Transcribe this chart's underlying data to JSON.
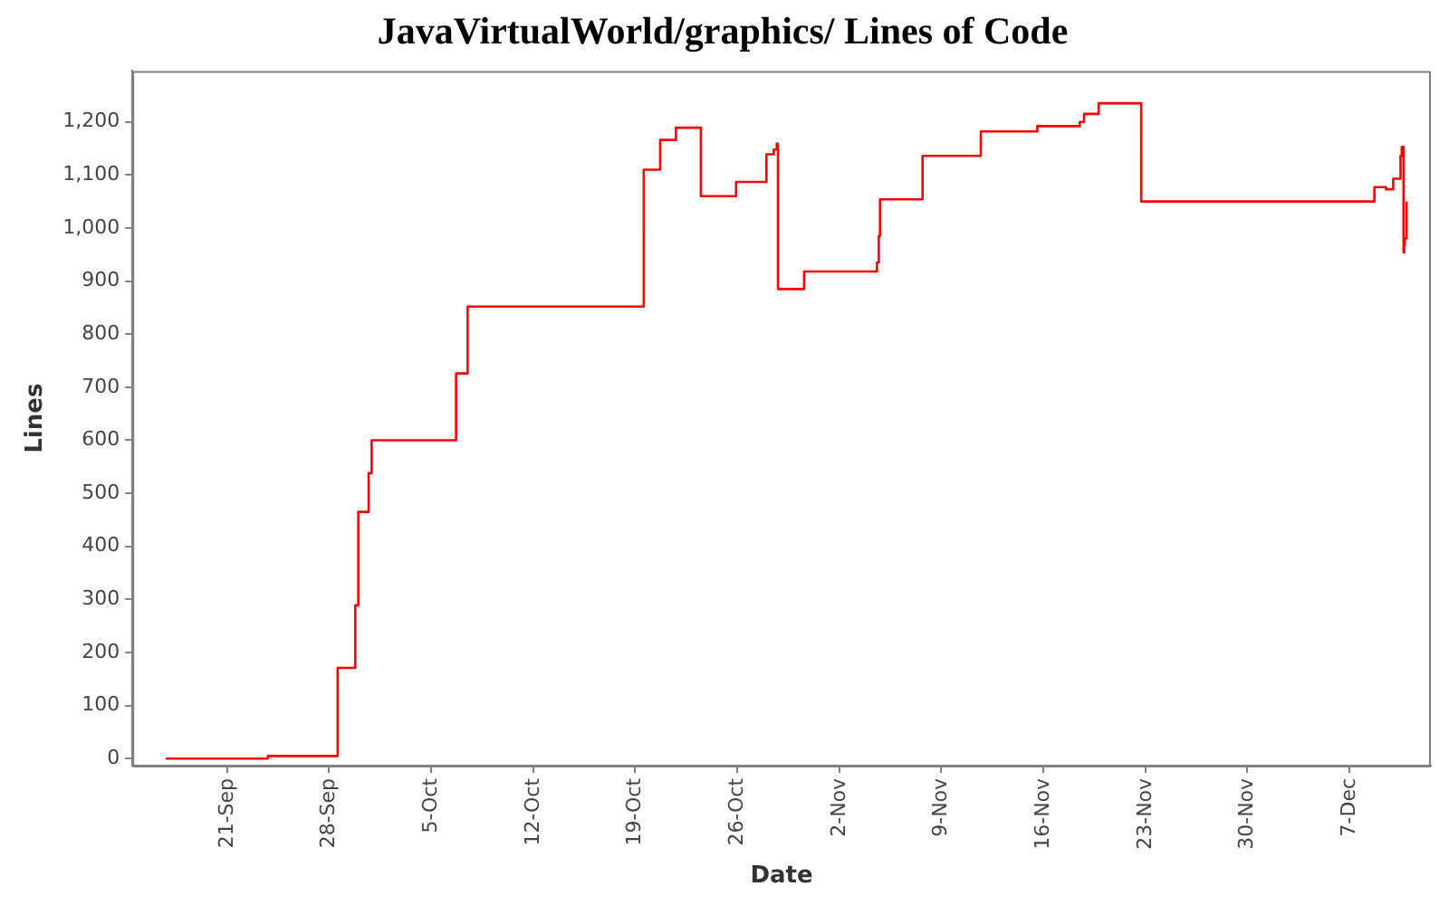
{
  "chart_data": {
    "type": "step",
    "title": "JavaVirtualWorld/graphics/ Lines of Code",
    "xlabel": "Date",
    "ylabel": "Lines",
    "x": [
      "--09-16T19:00",
      "--09-23T19:00",
      "--09-28T14:00",
      "--09-29T19:00",
      "--09-30T00:00",
      "--09-30T17:00",
      "--09-30T22:00",
      "--10-06T17:00",
      "--10-07T12:00",
      "--10-19T14:00",
      "--10-20T17:00",
      "--10-21T19:00",
      "--10-23T12:00",
      "--10-25T22:00",
      "--10-28T00:00",
      "--10-28T12:00",
      "--10-28T17:00",
      "--10-28T19:00",
      "--10-30T14:00",
      "--11-04T14:00",
      "--11-04T17:00",
      "--11-04T19:00",
      "--11-07T17:00",
      "--11-11T17:00",
      "--11-15T14:00",
      "--11-18T12:00",
      "--11-18T19:00",
      "--11-19T19:00",
      "--11-22T17:00",
      "--12-08T17:00",
      "--12-09T12:00",
      "--12-10T00:00",
      "--12-10T12:00",
      "--12-10T14:00",
      "--12-10T17:00",
      "--12-10T18:00",
      "--12-10T19:00",
      "--12-10T22:00"
    ],
    "series": [
      {
        "color": "#ff0000",
        "values": [
          0,
          5,
          171,
          289,
          465,
          538,
          600,
          726,
          852,
          1110,
          1166,
          1189,
          1060,
          1087,
          1139,
          1148,
          1159,
          885,
          918,
          935,
          985,
          1054,
          1136,
          1182,
          1192,
          1200,
          1215,
          1235,
          1050,
          1077,
          1073,
          1093,
          1136,
          1153,
          954,
          968,
          981,
          1050
        ]
      }
    ],
    "xlim": [
      "--09-14T12:00",
      "--12-12T14:00"
    ],
    "xticks": [
      {
        "value": "--09-21",
        "label": "21-Sep"
      },
      {
        "value": "--09-28",
        "label": "28-Sep"
      },
      {
        "value": "--10-05",
        "label": "5-Oct"
      },
      {
        "value": "--10-12",
        "label": "12-Oct"
      },
      {
        "value": "--10-19",
        "label": "19-Oct"
      },
      {
        "value": "--10-26",
        "label": "26-Oct"
      },
      {
        "value": "--11-02",
        "label": "2-Nov"
      },
      {
        "value": "--11-09",
        "label": "9-Nov"
      },
      {
        "value": "--11-16",
        "label": "16-Nov"
      },
      {
        "value": "--11-23",
        "label": "23-Nov"
      },
      {
        "value": "--11-30",
        "label": "30-Nov"
      },
      {
        "value": "--12-07",
        "label": "7-Dec"
      }
    ],
    "ylim": [
      -13,
      1296
    ],
    "yticks": [
      0,
      100,
      200,
      300,
      400,
      500,
      600,
      700,
      800,
      900,
      {
        "value": 1000,
        "label": "1,000"
      },
      {
        "value": 1100,
        "label": "1,100"
      },
      {
        "value": 1200,
        "label": "1,200"
      }
    ],
    "grid": false,
    "legend": false,
    "line_style": "solid",
    "marker": "none"
  }
}
